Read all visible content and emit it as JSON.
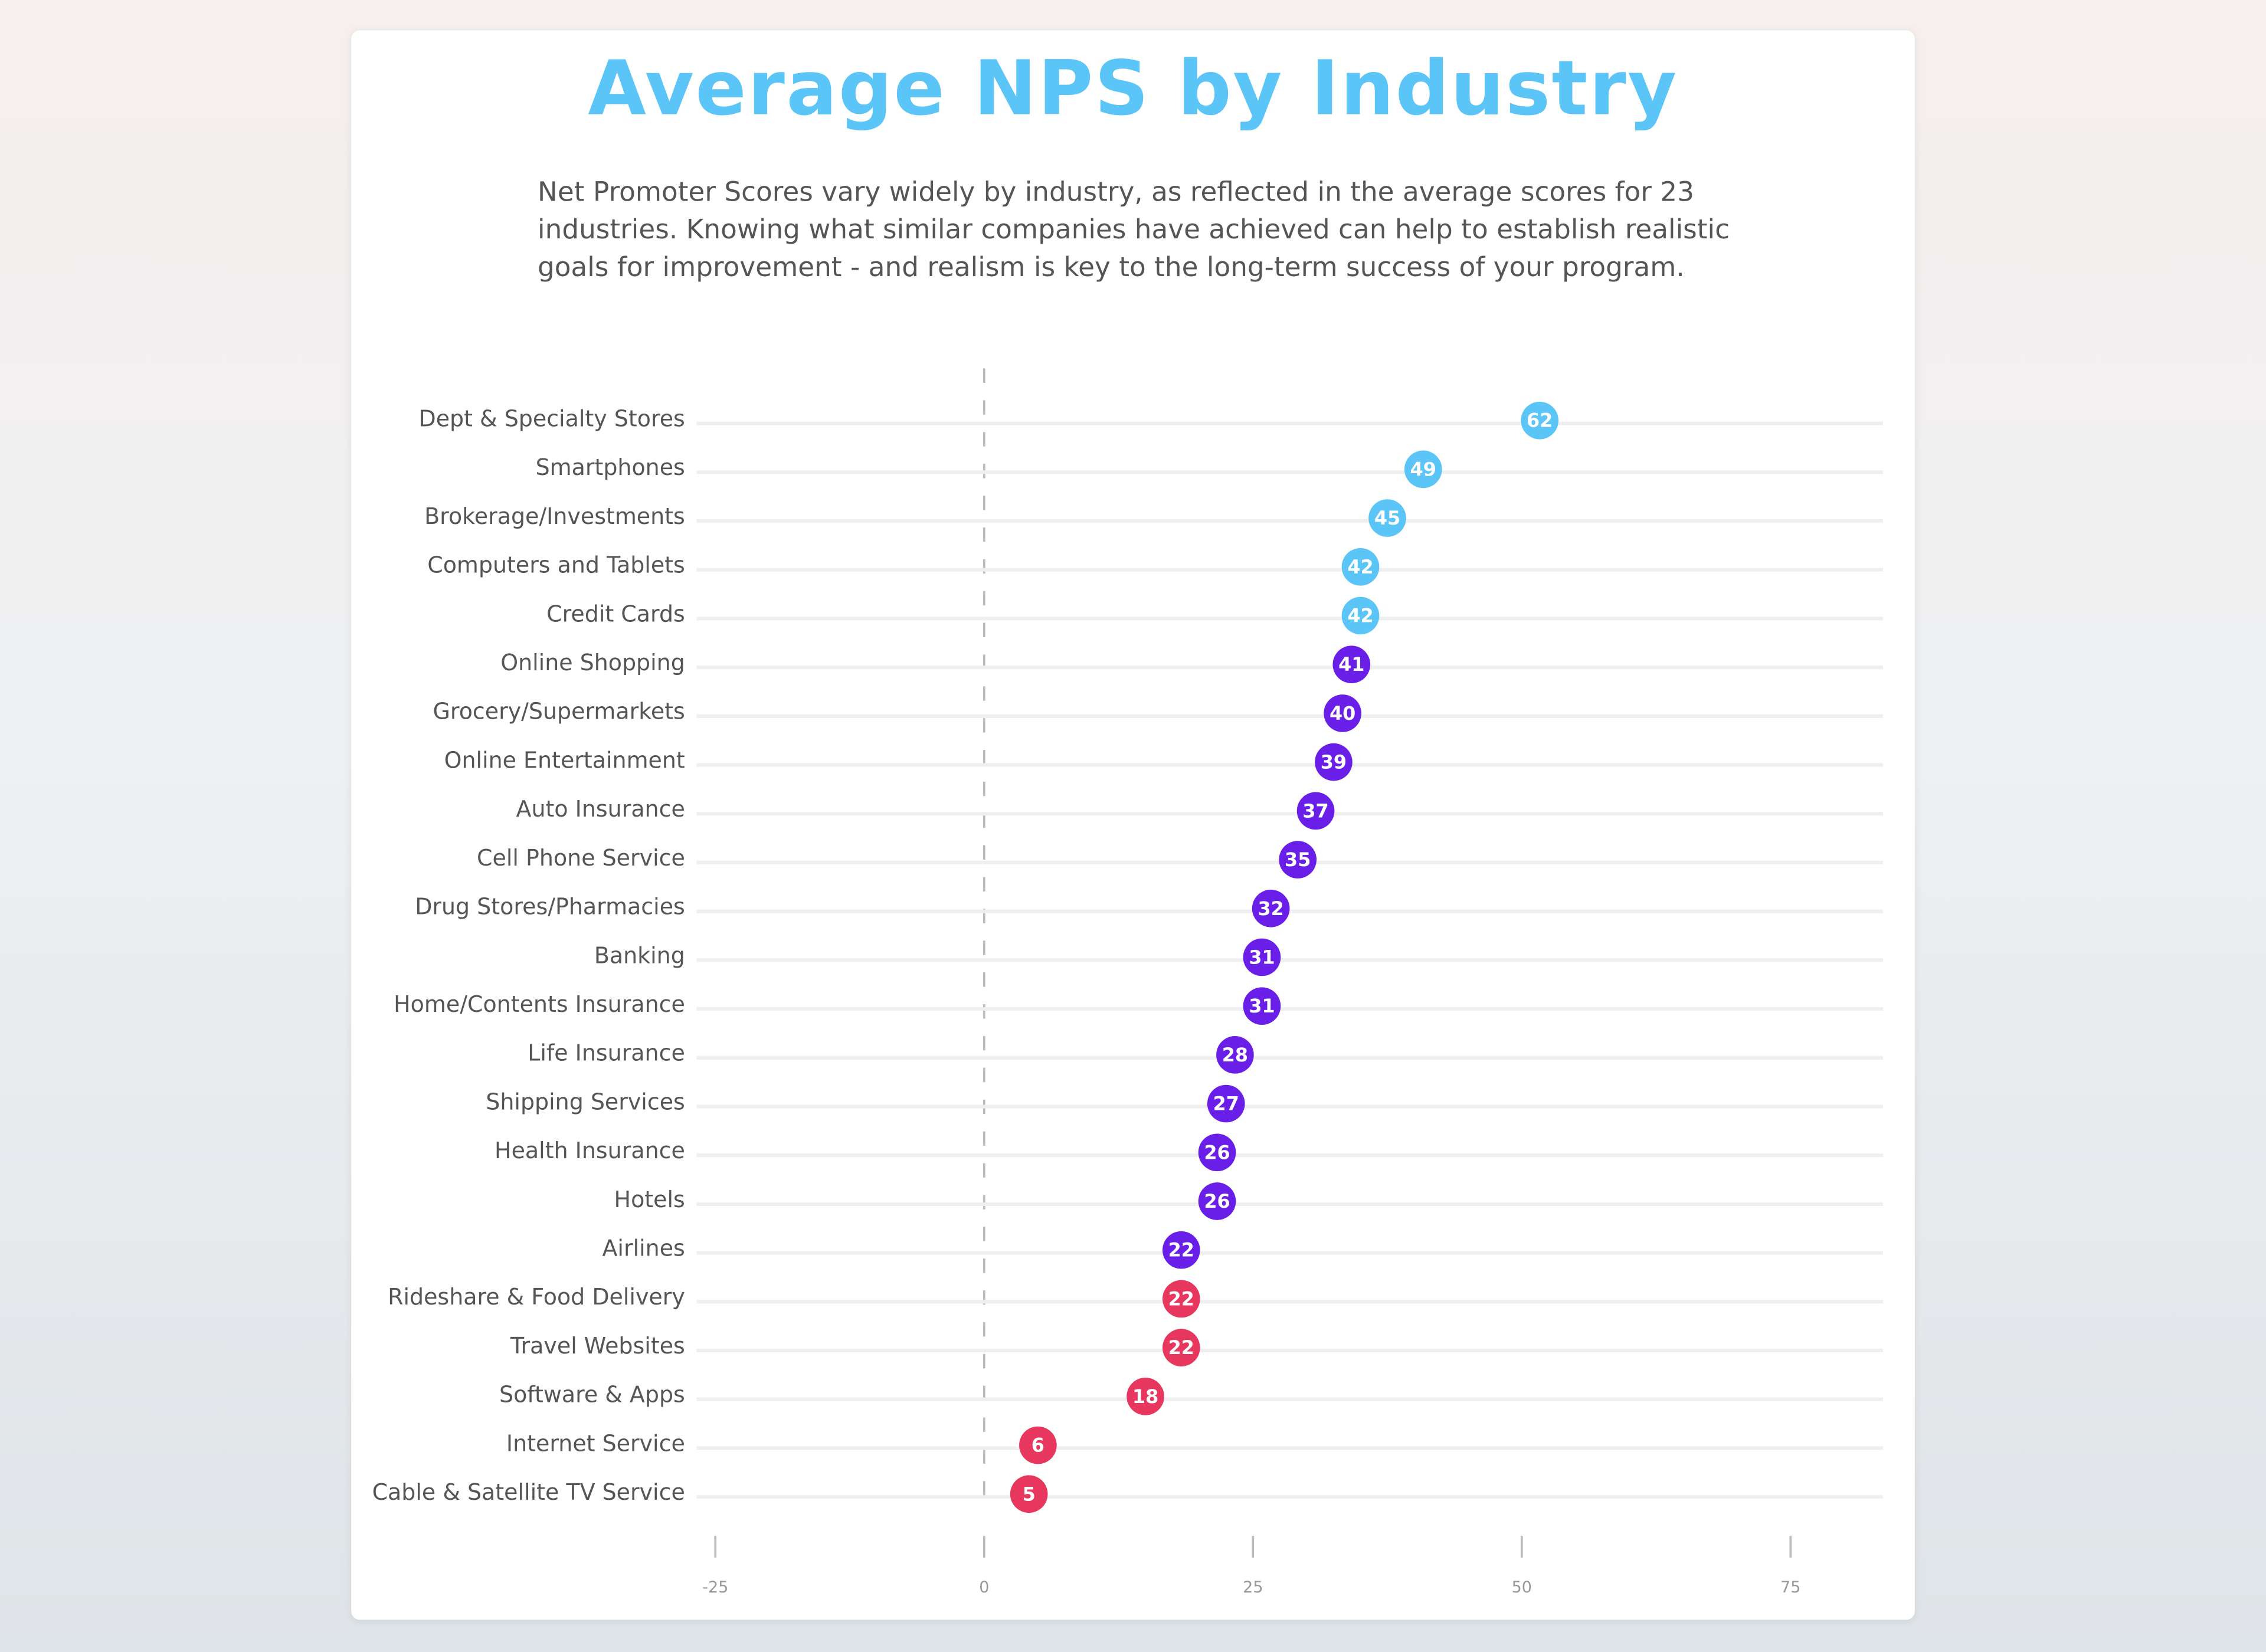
{
  "chart_data": {
    "type": "dot",
    "title": "Average NPS by Industry",
    "subtitle": "Net Promoter Scores vary widely by industry, as reflected in the average scores for 23 industries. Knowing what similar companies have achieved can help to establish realistic goals for improvement - and realism is key to the long-term success of your program.",
    "xlim": [
      -25,
      75
    ],
    "x_ticks": [
      "-25",
      "0",
      "25",
      "50",
      "75"
    ],
    "colors": {
      "high": "#5bc5f7",
      "mid": "#6a1fe8",
      "low": "#e8375e"
    },
    "categories": [
      "Dept & Specialty Stores",
      "Smartphones",
      "Brokerage/Investments",
      "Computers and Tablets",
      "Credit Cards",
      "Online Shopping",
      "Grocery/Supermarkets",
      "Online Entertainment",
      "Auto Insurance",
      "Cell Phone Service",
      "Drug Stores/Pharmacies",
      "Banking",
      "Home/Contents Insurance",
      "Life Insurance",
      "Shipping Services",
      "Health Insurance",
      "Hotels",
      "Airlines",
      "Rideshare & Food Delivery",
      "Travel Websites",
      "Software & Apps",
      "Internet Service",
      "Cable & Satellite TV Service"
    ],
    "values": [
      62,
      49,
      45,
      42,
      42,
      41,
      40,
      39,
      37,
      35,
      32,
      31,
      31,
      28,
      27,
      26,
      26,
      22,
      22,
      22,
      18,
      6,
      5
    ],
    "groups": [
      "high",
      "high",
      "high",
      "high",
      "high",
      "mid",
      "mid",
      "mid",
      "mid",
      "mid",
      "mid",
      "mid",
      "mid",
      "mid",
      "mid",
      "mid",
      "mid",
      "mid",
      "low",
      "low",
      "low",
      "low",
      "low"
    ]
  }
}
